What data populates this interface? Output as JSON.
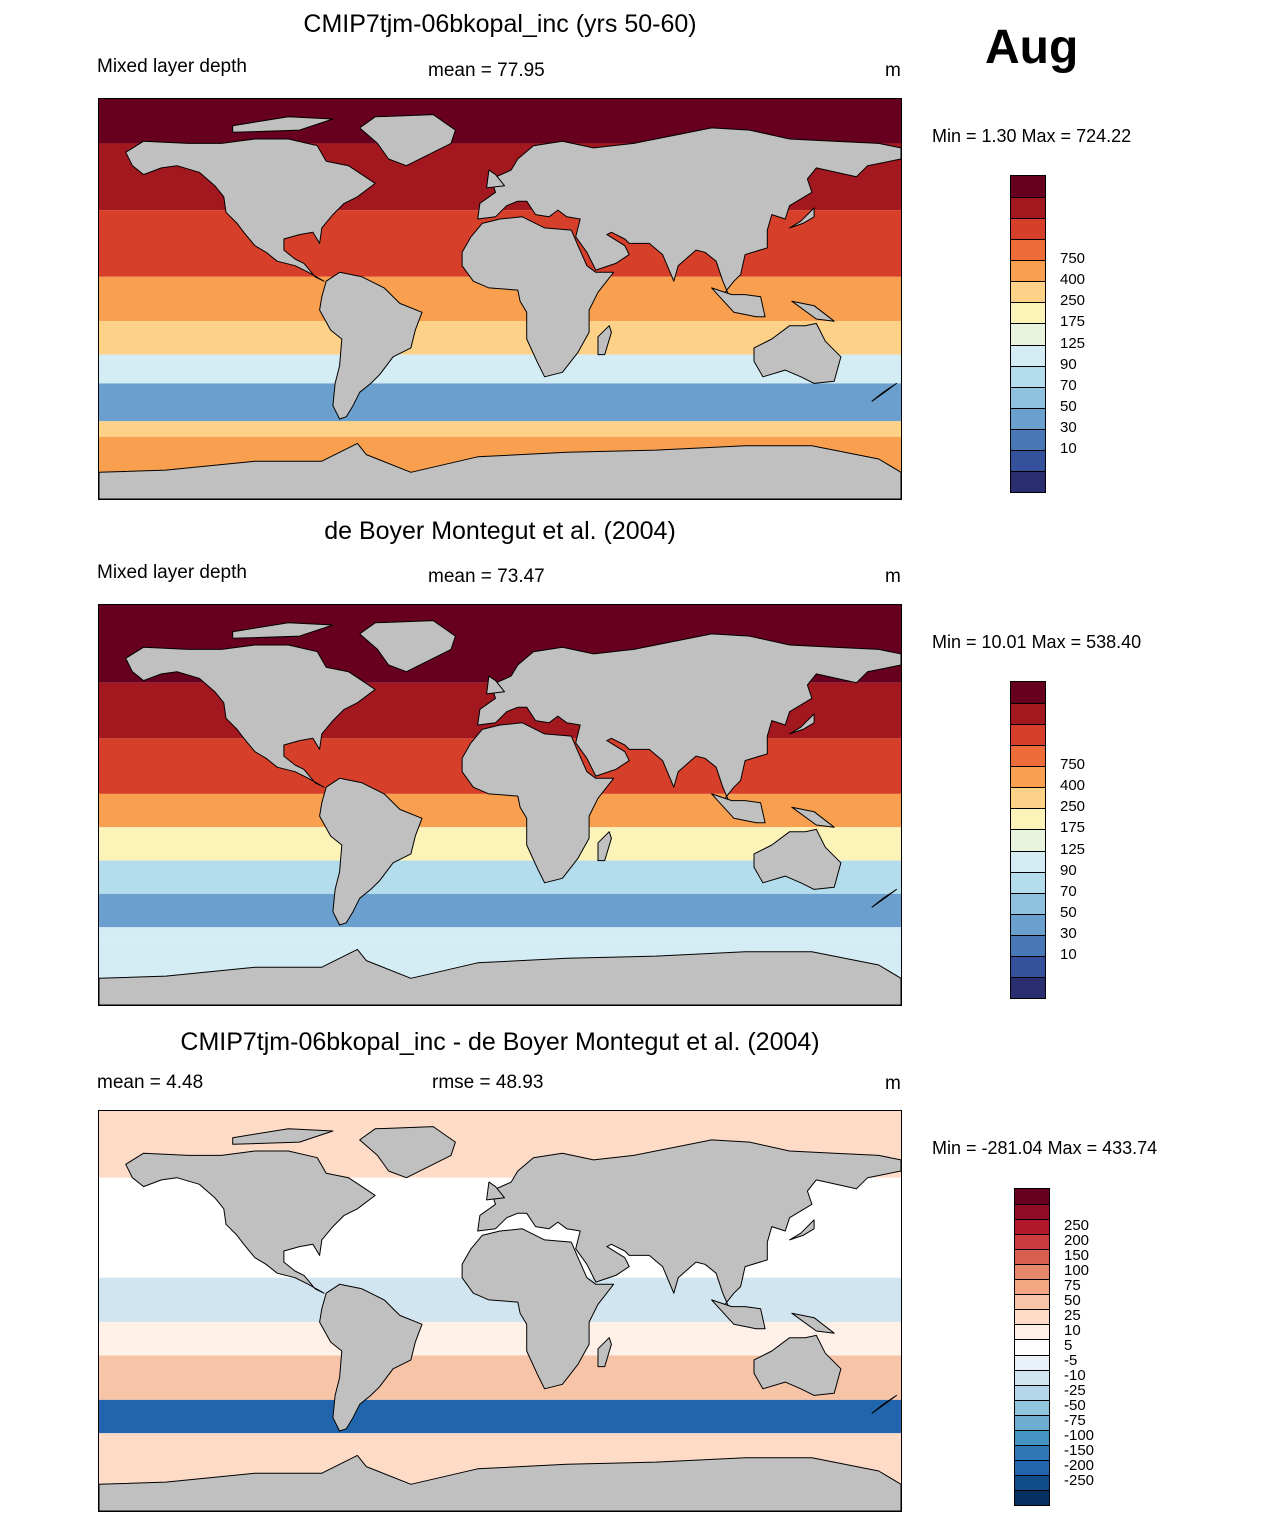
{
  "month": "Aug",
  "units": "m",
  "panels": [
    {
      "title": "CMIP7tjm-06bkopal_inc (yrs 50-60)",
      "left_label": "Mixed layer depth",
      "center_label": "mean =  77.95",
      "units": "m",
      "minmax": "Min =   1.30 Max = 724.22",
      "palette": "abs"
    },
    {
      "title": "de Boyer Montegut et al. (2004)",
      "left_label": "Mixed layer depth",
      "center_label": "mean =  73.47",
      "units": "m",
      "minmax": "Min =  10.01 Max = 538.40",
      "palette": "abs"
    },
    {
      "title": "CMIP7tjm-06bkopal_inc - de Boyer Montegut et al. (2004)",
      "left_label": "mean =   4.48",
      "center_label": "rmse =  48.93",
      "units": "m",
      "minmax": "Min = -281.04 Max = 433.74",
      "palette": "diff"
    }
  ],
  "colorbars": {
    "abs": {
      "labels": [
        "750",
        "400",
        "250",
        "175",
        "125",
        "90",
        "70",
        "50",
        "30",
        "10"
      ],
      "colors": [
        "#67001f",
        "#a3171f",
        "#d6402a",
        "#ee6c3a",
        "#f8a04f",
        "#fdd187",
        "#fbf3b8",
        "#e9f4de",
        "#d4ecf4",
        "#b3dcec",
        "#8fc2de",
        "#6a9fce",
        "#4978b8",
        "#35519c",
        "#2a2e6e"
      ]
    },
    "diff": {
      "labels": [
        "250",
        "200",
        "150",
        "100",
        "75",
        "50",
        "25",
        "10",
        "5",
        "-5",
        "-10",
        "-25",
        "-50",
        "-75",
        "-100",
        "-150",
        "-200",
        "-250"
      ],
      "colors": [
        "#67001f",
        "#8e0c25",
        "#b2182b",
        "#cb3a3d",
        "#d6604d",
        "#e7886c",
        "#f4a582",
        "#f8c4a8",
        "#fddbc7",
        "#fff0e8",
        "#ffffff",
        "#e8f2f8",
        "#d1e5f0",
        "#b5d6e9",
        "#92c5de",
        "#6eacd1",
        "#4393c3",
        "#2f78b5",
        "#2166ac",
        "#104b8a",
        "#053061"
      ]
    }
  },
  "map_fields": {
    "abs_model": [
      {
        "lat": [
          70,
          90
        ],
        "lon": [
          -180,
          180
        ],
        "level": 14
      },
      {
        "lat": [
          40,
          70
        ],
        "lon": [
          -180,
          180
        ],
        "level": 13
      },
      {
        "lat": [
          10,
          40
        ],
        "lon": [
          -180,
          180
        ],
        "level": 12
      },
      {
        "lat": [
          -10,
          10
        ],
        "lon": [
          -180,
          180
        ],
        "level": 10
      },
      {
        "lat": [
          -25,
          -10
        ],
        "lon": [
          -180,
          180
        ],
        "level": 9
      },
      {
        "lat": [
          -38,
          -25
        ],
        "lon": [
          -180,
          180
        ],
        "level": 6
      },
      {
        "lat": [
          -55,
          -38
        ],
        "lon": [
          -180,
          180
        ],
        "level": 3
      },
      {
        "lat": [
          -62,
          -55
        ],
        "lon": [
          -180,
          180
        ],
        "level": 9
      },
      {
        "lat": [
          -90,
          -62
        ],
        "lon": [
          -180,
          180
        ],
        "level": 10
      }
    ],
    "abs_obs": [
      {
        "lat": [
          55,
          90
        ],
        "lon": [
          -180,
          180
        ],
        "level": 14
      },
      {
        "lat": [
          30,
          55
        ],
        "lon": [
          -180,
          180
        ],
        "level": 13
      },
      {
        "lat": [
          5,
          30
        ],
        "lon": [
          -180,
          180
        ],
        "level": 12
      },
      {
        "lat": [
          -10,
          5
        ],
        "lon": [
          -180,
          180
        ],
        "level": 10
      },
      {
        "lat": [
          -25,
          -10
        ],
        "lon": [
          -180,
          180
        ],
        "level": 8
      },
      {
        "lat": [
          -40,
          -25
        ],
        "lon": [
          -180,
          180
        ],
        "level": 5
      },
      {
        "lat": [
          -55,
          -40
        ],
        "lon": [
          -180,
          180
        ],
        "level": 3
      },
      {
        "lat": [
          -62,
          -55
        ],
        "lon": [
          -180,
          180
        ],
        "level": 6
      },
      {
        "lat": [
          -90,
          -62
        ],
        "lon": [
          -180,
          180
        ],
        "level": 6
      }
    ],
    "diff": [
      {
        "lat": [
          60,
          90
        ],
        "lon": [
          -180,
          180
        ],
        "level": 12
      },
      {
        "lat": [
          15,
          60
        ],
        "lon": [
          -180,
          180
        ],
        "level": 10
      },
      {
        "lat": [
          -5,
          15
        ],
        "lon": [
          -180,
          180
        ],
        "level": 8
      },
      {
        "lat": [
          -20,
          -5
        ],
        "lon": [
          -180,
          180
        ],
        "level": 11
      },
      {
        "lat": [
          -40,
          -20
        ],
        "lon": [
          -180,
          180
        ],
        "level": 13
      },
      {
        "lat": [
          -55,
          -40
        ],
        "lon": [
          -180,
          180
        ],
        "level": 2
      },
      {
        "lat": [
          -90,
          -55
        ],
        "lon": [
          -180,
          180
        ],
        "level": 12
      }
    ]
  }
}
